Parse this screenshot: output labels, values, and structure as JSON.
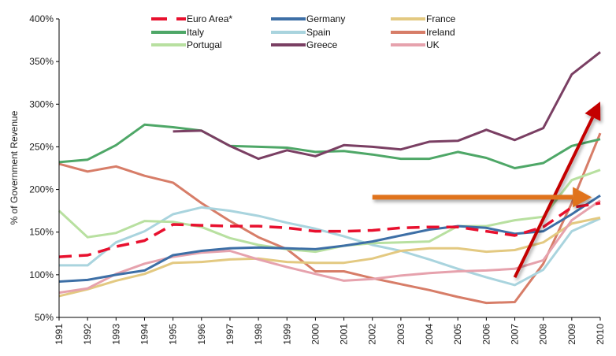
{
  "chart_data": {
    "type": "line",
    "title": "",
    "xlabel": "",
    "ylabel": "% of Government Revenue",
    "ylim": [
      50,
      400
    ],
    "y_ticks": [
      50,
      100,
      150,
      200,
      250,
      300,
      350,
      400
    ],
    "y_tick_format": "{v}%",
    "grid": false,
    "legend_position": "top",
    "x": [
      1991,
      1992,
      1993,
      1994,
      1995,
      1996,
      1997,
      1998,
      1999,
      2000,
      2001,
      2002,
      2003,
      2004,
      2005,
      2006,
      2007,
      2008,
      2009,
      2010
    ],
    "series": [
      {
        "name": "Euro Area*",
        "color": "#e8102e",
        "dashed": true,
        "values": [
          121,
          123,
          133,
          140,
          159,
          158,
          157,
          157,
          155,
          151,
          151,
          152,
          155,
          156,
          156,
          151,
          146,
          156,
          179,
          184
        ]
      },
      {
        "name": "Germany",
        "color": "#3d6fa6",
        "dashed": false,
        "values": [
          92,
          94,
          100,
          105,
          123,
          128,
          131,
          132,
          131,
          130,
          134,
          139,
          146,
          153,
          157,
          155,
          148,
          151,
          171,
          193
        ]
      },
      {
        "name": "France",
        "color": "#e3c981",
        "dashed": false,
        "values": [
          75,
          83,
          93,
          101,
          114,
          115,
          118,
          119,
          115,
          114,
          114,
          119,
          128,
          131,
          131,
          127,
          129,
          138,
          160,
          167
        ]
      },
      {
        "name": "Italy",
        "color": "#4ea767",
        "dashed": false,
        "values": [
          232,
          235,
          252,
          276,
          273,
          269,
          251,
          250,
          249,
          244,
          245,
          241,
          236,
          236,
          244,
          237,
          225,
          231,
          251,
          259
        ]
      },
      {
        "name": "Spain",
        "color": "#a9d4de",
        "dashed": false,
        "values": [
          111,
          111,
          138,
          151,
          171,
          179,
          175,
          169,
          161,
          154,
          145,
          135,
          128,
          118,
          107,
          97,
          88,
          106,
          151,
          166
        ]
      },
      {
        "name": "Ireland",
        "color": "#d77d68",
        "dashed": false,
        "values": [
          230,
          221,
          227,
          216,
          208,
          184,
          163,
          144,
          130,
          104,
          104,
          96,
          89,
          82,
          74,
          67,
          68,
          113,
          184,
          266
        ]
      },
      {
        "name": "Portugal",
        "color": "#b8e0a0",
        "dashed": false,
        "values": [
          175,
          144,
          149,
          163,
          162,
          156,
          143,
          135,
          130,
          127,
          134,
          137,
          138,
          139,
          157,
          157,
          164,
          168,
          211,
          223
        ]
      },
      {
        "name": "Greece",
        "color": "#7a3f63",
        "dashed": false,
        "values": [
          null,
          null,
          null,
          null,
          268,
          269,
          251,
          236,
          246,
          239,
          252,
          250,
          247,
          256,
          257,
          270,
          258,
          272,
          335,
          361
        ]
      },
      {
        "name": "UK",
        "color": "#e6a2ad",
        "dashed": false,
        "values": [
          79,
          84,
          101,
          113,
          121,
          126,
          128,
          118,
          109,
          101,
          93,
          95,
          99,
          102,
          104,
          105,
          107,
          117,
          164,
          187
        ]
      }
    ],
    "annotations": [
      {
        "type": "arrow",
        "description": "red diagonal arrow indicating sharp rise",
        "color": "#c40000",
        "from": {
          "x": 2007,
          "y": 97
        },
        "to": {
          "x": 2010,
          "y": 303
        }
      },
      {
        "type": "arrow",
        "description": "orange horizontal arrow",
        "color": "#e0731a",
        "from": {
          "x": 2002,
          "y": 191
        },
        "to": {
          "x": 2009.7,
          "y": 191
        }
      }
    ]
  }
}
